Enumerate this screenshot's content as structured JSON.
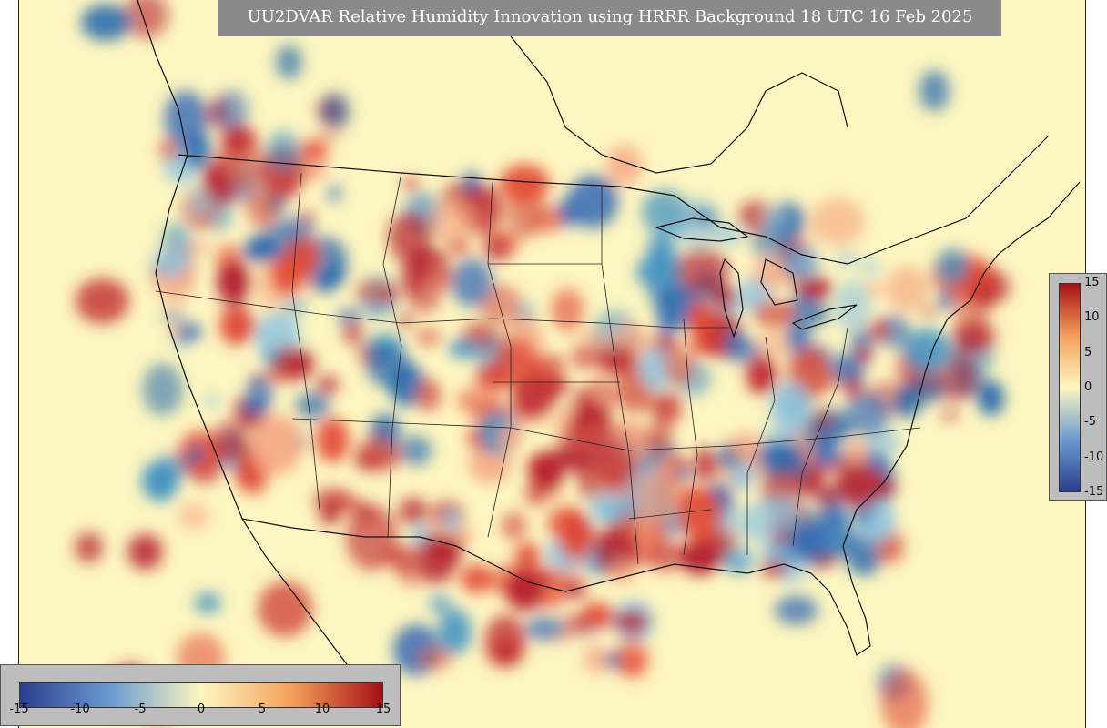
{
  "title": "UU2DVAR Relative Humidity Innovation using HRRR Background 18 UTC 16 Feb 2025",
  "colorbar_horizontal": {
    "ticks": [
      "-15",
      "-10",
      "-5",
      "0",
      "5",
      "10",
      "15"
    ]
  },
  "colorbar_vertical": {
    "ticks": [
      "15",
      "10",
      "5",
      "0",
      "-5",
      "-10",
      "-15"
    ]
  },
  "colors": {
    "neg_max": "#2c3e8f",
    "neg_mid": "#6a9bd0",
    "neutral": "#fdf6c0",
    "pos_mid": "#f4a05a",
    "pos_max": "#a50f15",
    "panel": "#bdbdbd",
    "title_bg": "#8a8a8a"
  },
  "colormap": "diverging red-yellow-blue",
  "value_range": [
    -15,
    15
  ]
}
